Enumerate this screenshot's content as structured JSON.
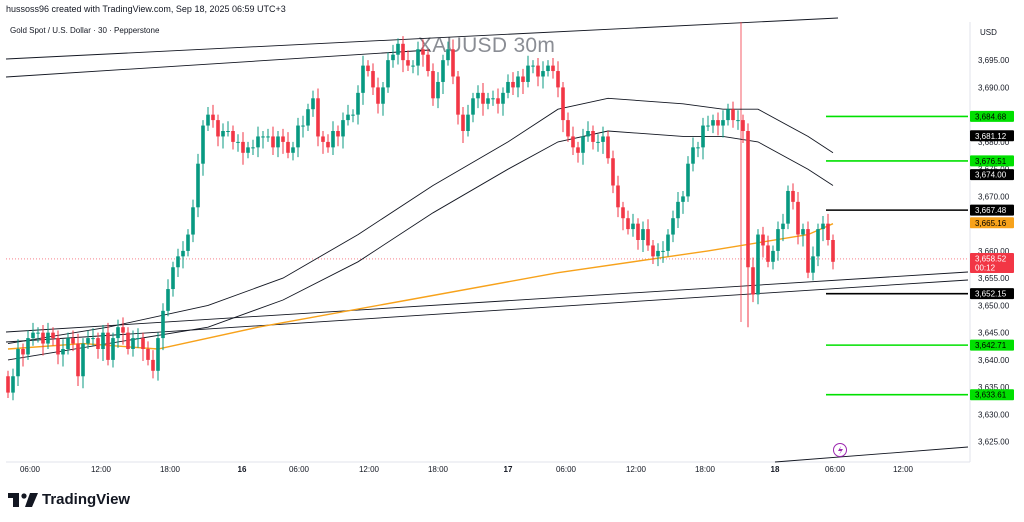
{
  "header": {
    "credit": "hussoss96 created with TradingView.com, Sep 18, 2025 06:59 UTC+3",
    "symbol_line": "Gold Spot / U.S. Dollar · 30 · Pepperstone",
    "watermark": "XAUUSD 30m",
    "currency": "USD"
  },
  "footer": {
    "brand": "TradingView"
  },
  "colors": {
    "up": "#089981",
    "down": "#f23645",
    "level_green": "#00e000",
    "level_black": "#000000",
    "ma_orange": "#f7a21b",
    "channel": "#131722"
  },
  "chart_data": {
    "type": "candlestick",
    "title": "XAUUSD 30m",
    "ylim": [
      3622,
      3702
    ],
    "y_ticks": [
      "3,625.00",
      "3,630.00",
      "3,635.00",
      "3,640.00",
      "3,645.00",
      "3,650.00",
      "3,655.00",
      "3,660.00",
      "3,665.00",
      "3,670.00",
      "3,675.00",
      "3,680.00",
      "3,685.00",
      "3,690.00",
      "3,695.00"
    ],
    "x_ticks": [
      {
        "label": "06:00",
        "bold": false
      },
      {
        "label": "12:00",
        "bold": false
      },
      {
        "label": "18:00",
        "bold": false
      },
      {
        "label": "16",
        "bold": true
      },
      {
        "label": "06:00",
        "bold": false
      },
      {
        "label": "12:00",
        "bold": false
      },
      {
        "label": "18:00",
        "bold": false
      },
      {
        "label": "17",
        "bold": true
      },
      {
        "label": "06:00",
        "bold": false
      },
      {
        "label": "12:00",
        "bold": false
      },
      {
        "label": "18:00",
        "bold": false
      },
      {
        "label": "18",
        "bold": true
      },
      {
        "label": "06:00",
        "bold": false
      },
      {
        "label": "12:00",
        "bold": false
      }
    ],
    "price_levels": [
      {
        "price": 3684.68,
        "label": "3,684.68",
        "kind": "green"
      },
      {
        "price": 3681.12,
        "label": "3,681.12",
        "kind": "black"
      },
      {
        "price": 3676.51,
        "label": "3,676.51",
        "kind": "green"
      },
      {
        "price": 3674.0,
        "label": "3,674.00",
        "kind": "black"
      },
      {
        "price": 3667.48,
        "label": "3,667.48",
        "kind": "black"
      },
      {
        "price": 3665.16,
        "label": "3,665.16",
        "kind": "orange"
      },
      {
        "price": 3658.52,
        "label": "3,658.52",
        "kind": "current",
        "sub": "00:12"
      },
      {
        "price": 3652.15,
        "label": "3,652.15",
        "kind": "black"
      },
      {
        "price": 3642.71,
        "label": "3,642.71",
        "kind": "green"
      },
      {
        "price": 3633.61,
        "label": "3,633.61",
        "kind": "green"
      }
    ],
    "closes": [
      3634,
      3637,
      3642,
      3641,
      3644,
      3645,
      3645,
      3643,
      3645,
      3644,
      3641,
      3642,
      3644,
      3643,
      3637,
      3643,
      3644,
      3644,
      3642,
      3645,
      3640,
      3644,
      3646,
      3645,
      3642,
      3644,
      3644,
      3642,
      3640,
      3638,
      3644,
      3649,
      3653,
      3657,
      3659,
      3660,
      3663,
      3668,
      3676,
      3683,
      3685,
      3684,
      3681,
      3682,
      3682,
      3680,
      3680,
      3678,
      3679,
      3679,
      3681,
      3681,
      3681,
      3679,
      3681,
      3680,
      3678,
      3679,
      3683,
      3683,
      3686,
      3688,
      3681,
      3680,
      3679,
      3682,
      3681,
      3684,
      3685,
      3685,
      3689,
      3694,
      3693,
      3690,
      3687,
      3690,
      3695,
      3696,
      3698,
      3695,
      3694,
      3694,
      3697,
      3696,
      3693,
      3688,
      3691,
      3695,
      3697,
      3692,
      3685,
      3682,
      3685,
      3688,
      3689,
      3687,
      3688,
      3688,
      3687,
      3689,
      3691,
      3690,
      3692,
      3691,
      3694,
      3694,
      3692,
      3693,
      3694,
      3693,
      3690,
      3684,
      3681,
      3679,
      3678,
      3681,
      3682,
      3680,
      3680,
      3681,
      3677,
      3672,
      3668,
      3666,
      3664,
      3665,
      3662,
      3664,
      3661,
      3659,
      3660,
      3660,
      3663,
      3666,
      3669,
      3670,
      3676,
      3679,
      3679,
      3683,
      3683,
      3684,
      3683,
      3684,
      3686,
      3684,
      3684,
      3682,
      3657,
      3652,
      3663,
      3661,
      3658,
      3660,
      3664,
      3665,
      3671,
      3669,
      3663,
      3664,
      3656,
      3659,
      3664,
      3665,
      3662,
      3658
    ],
    "ma_orange_points": [
      [
        0,
        3642
      ],
      [
        15,
        3643
      ],
      [
        30,
        3642
      ],
      [
        50,
        3646
      ],
      [
        80,
        3651
      ],
      [
        110,
        3656
      ],
      [
        140,
        3660
      ],
      [
        160,
        3663
      ],
      [
        165,
        3665
      ]
    ],
    "upper_band_points": [
      [
        0,
        3643
      ],
      [
        20,
        3646
      ],
      [
        40,
        3650
      ],
      [
        55,
        3655
      ],
      [
        70,
        3663
      ],
      [
        85,
        3672
      ],
      [
        100,
        3680
      ],
      [
        110,
        3686
      ],
      [
        120,
        3688
      ],
      [
        135,
        3687
      ],
      [
        143,
        3686
      ],
      [
        150,
        3686
      ],
      [
        160,
        3681
      ],
      [
        165,
        3678
      ]
    ],
    "lower_band_points": [
      [
        0,
        3640
      ],
      [
        20,
        3643
      ],
      [
        40,
        3646
      ],
      [
        55,
        3651
      ],
      [
        70,
        3658
      ],
      [
        85,
        3667
      ],
      [
        100,
        3675
      ],
      [
        110,
        3680
      ],
      [
        120,
        3682
      ],
      [
        135,
        3681
      ],
      [
        143,
        3681
      ],
      [
        150,
        3680
      ],
      [
        160,
        3675
      ],
      [
        165,
        3672
      ]
    ]
  }
}
